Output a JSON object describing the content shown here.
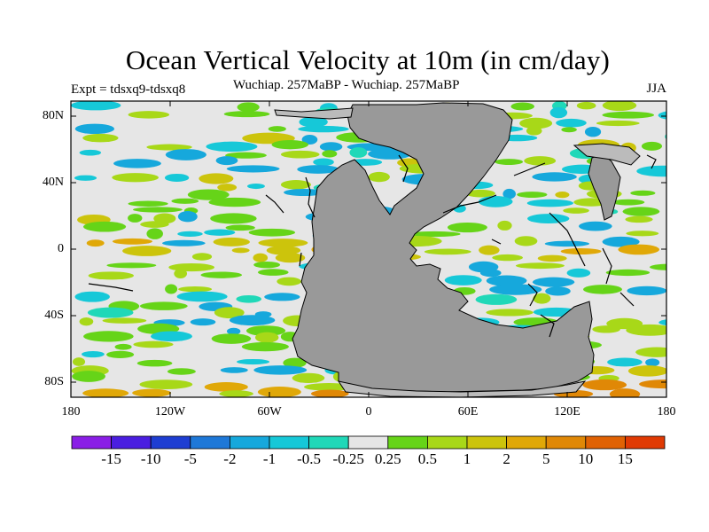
{
  "title": "Ocean Vertical Velocity at 10m (in cm/day)",
  "experiment": "Expt = tdsxq9-tdsxq8",
  "subtitle": "Wuchiap. 257MaBP - Wuchiap. 257MaBP",
  "season": "JJA",
  "lat_labels": [
    "80N",
    "40N",
    "0",
    "40S",
    "80S"
  ],
  "lon_labels": [
    "180",
    "120W",
    "60W",
    "0",
    "60E",
    "120E",
    "180"
  ],
  "colorbar": {
    "labels": [
      "-15",
      "-10",
      "-5",
      "-2",
      "-1",
      "-0.5",
      "-0.25",
      "0.25",
      "0.5",
      "1",
      "2",
      "5",
      "10",
      "15"
    ],
    "colors": [
      "#8a1ee6",
      "#4a1ee0",
      "#1e3ed2",
      "#1e78d8",
      "#16a8dc",
      "#16c8d8",
      "#20d8b8",
      "#e6e6e6",
      "#66d418",
      "#a8d818",
      "#ccc40c",
      "#e0a808",
      "#e08806",
      "#e06204",
      "#e03a04"
    ]
  },
  "map_colors": {
    "land": "#999999",
    "ice": "#bbbbbb",
    "ocean_neutral": "#e6e6e6",
    "coast": "#000000"
  }
}
